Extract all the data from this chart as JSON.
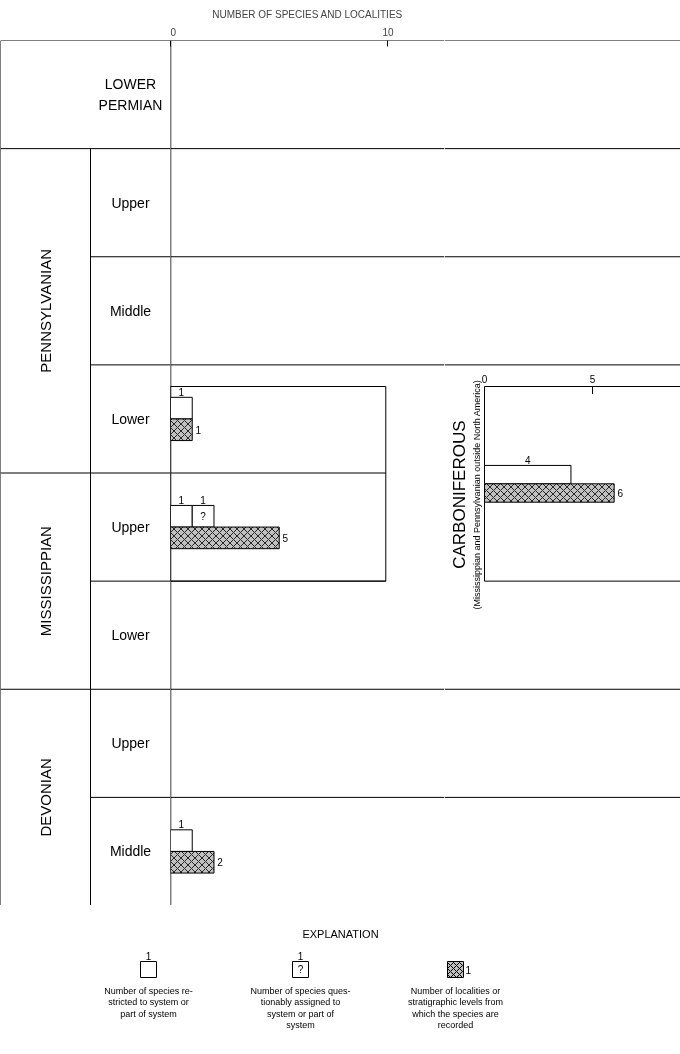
{
  "chart_data": [
    {
      "type": "bar",
      "orientation": "horizontal",
      "data_labels": true,
      "xlabel": "NUMBER OF SPECIES AND LOCALITIES",
      "xlim": [
        0,
        12.6
      ],
      "xticks": [
        0,
        10
      ],
      "legend": "bottom",
      "legend_title": "EXPLANATION",
      "categories": [
        "LOWER PERMIAN",
        "Upper",
        "Middle",
        "Lower",
        "Upper",
        "Lower",
        "Upper",
        "Middle"
      ],
      "annotations": [
        "PENNSYLVANIAN",
        "MISSISSIPPIAN",
        "DEVONIAN",
        "?",
        "1"
      ],
      "series": [
        {
          "name": "Number of species re-\nstricted to system or\npart of system",
          "color": "#ffffff",
          "values": [
            null,
            null,
            null,
            1,
            1,
            null,
            null,
            1
          ]
        },
        {
          "name": "Number of species ques-\ntionably assigned to\nsystem or part of\nsystem",
          "color": "#ffffff",
          "base": [
            null,
            null,
            null,
            null,
            1,
            null,
            null,
            null
          ],
          "values": [
            null,
            null,
            null,
            null,
            1,
            null,
            null,
            null
          ]
        },
        {
          "name": "Number of localities or\nstratigraphic levels from\nwhich the species are\nrecorded",
          "color": "#c0c0c0",
          "values": [
            null,
            null,
            null,
            1,
            5,
            null,
            null,
            2
          ]
        }
      ]
    },
    {
      "type": "bar",
      "orientation": "horizontal",
      "data_labels": true,
      "title": "CARBONIFEROUS",
      "subtitle": "(Mississippian and Pennsylvanian outside North America)",
      "xlim": [
        0,
        9.07
      ],
      "xticks": [
        0,
        5
      ],
      "categories": [
        null
      ],
      "series": [
        {
          "color": "#ffffff",
          "values": [
            4
          ]
        },
        {
          "color": "#c0c0c0",
          "values": [
            6
          ]
        }
      ]
    }
  ]
}
